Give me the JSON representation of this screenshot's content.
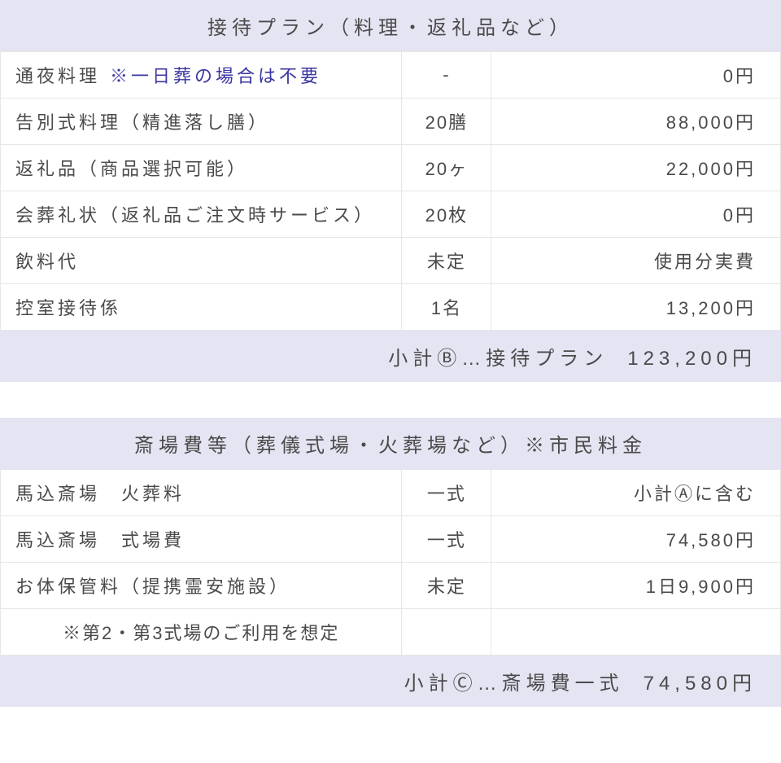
{
  "sections": [
    {
      "title": "接待プラン（料理・返礼品など）",
      "rows": [
        {
          "desc": "通夜料理",
          "note": "※一日葬の場合は不要",
          "qty": "-",
          "price": "0円"
        },
        {
          "desc": "告別式料理（精進落し膳）",
          "qty": "20膳",
          "price": "88,000円"
        },
        {
          "desc": "返礼品（商品選択可能）",
          "qty": "20ヶ",
          "price": "22,000円"
        },
        {
          "desc": "会葬礼状（返礼品ご注文時サービス）",
          "qty": "20枚",
          "price": "0円"
        },
        {
          "desc": "飲料代",
          "qty": "未定",
          "price": "使用分実費"
        },
        {
          "desc": "控室接待係",
          "qty": "1名",
          "price": "13,200円"
        }
      ],
      "subtotal_label": "小計Ⓑ…接待プラン",
      "subtotal_price": "123,200円"
    },
    {
      "title": "斎場費等（葬儀式場・火葬場など）※市民料金",
      "rows": [
        {
          "desc": "馬込斎場　火葬料",
          "qty": "一式",
          "price": "小計Ⓐに含む"
        },
        {
          "desc": "馬込斎場　式場費",
          "qty": "一式",
          "price": "74,580円"
        },
        {
          "desc": "お体保管料（提携霊安施設）",
          "qty": "未定",
          "price": "1日9,900円"
        },
        {
          "desc": "※第2・第3式場のご利用を想定",
          "qty": "",
          "price": "",
          "is_note": true
        }
      ],
      "subtotal_label": "小計Ⓒ…斎場費一式",
      "subtotal_price": "74,580円"
    }
  ]
}
